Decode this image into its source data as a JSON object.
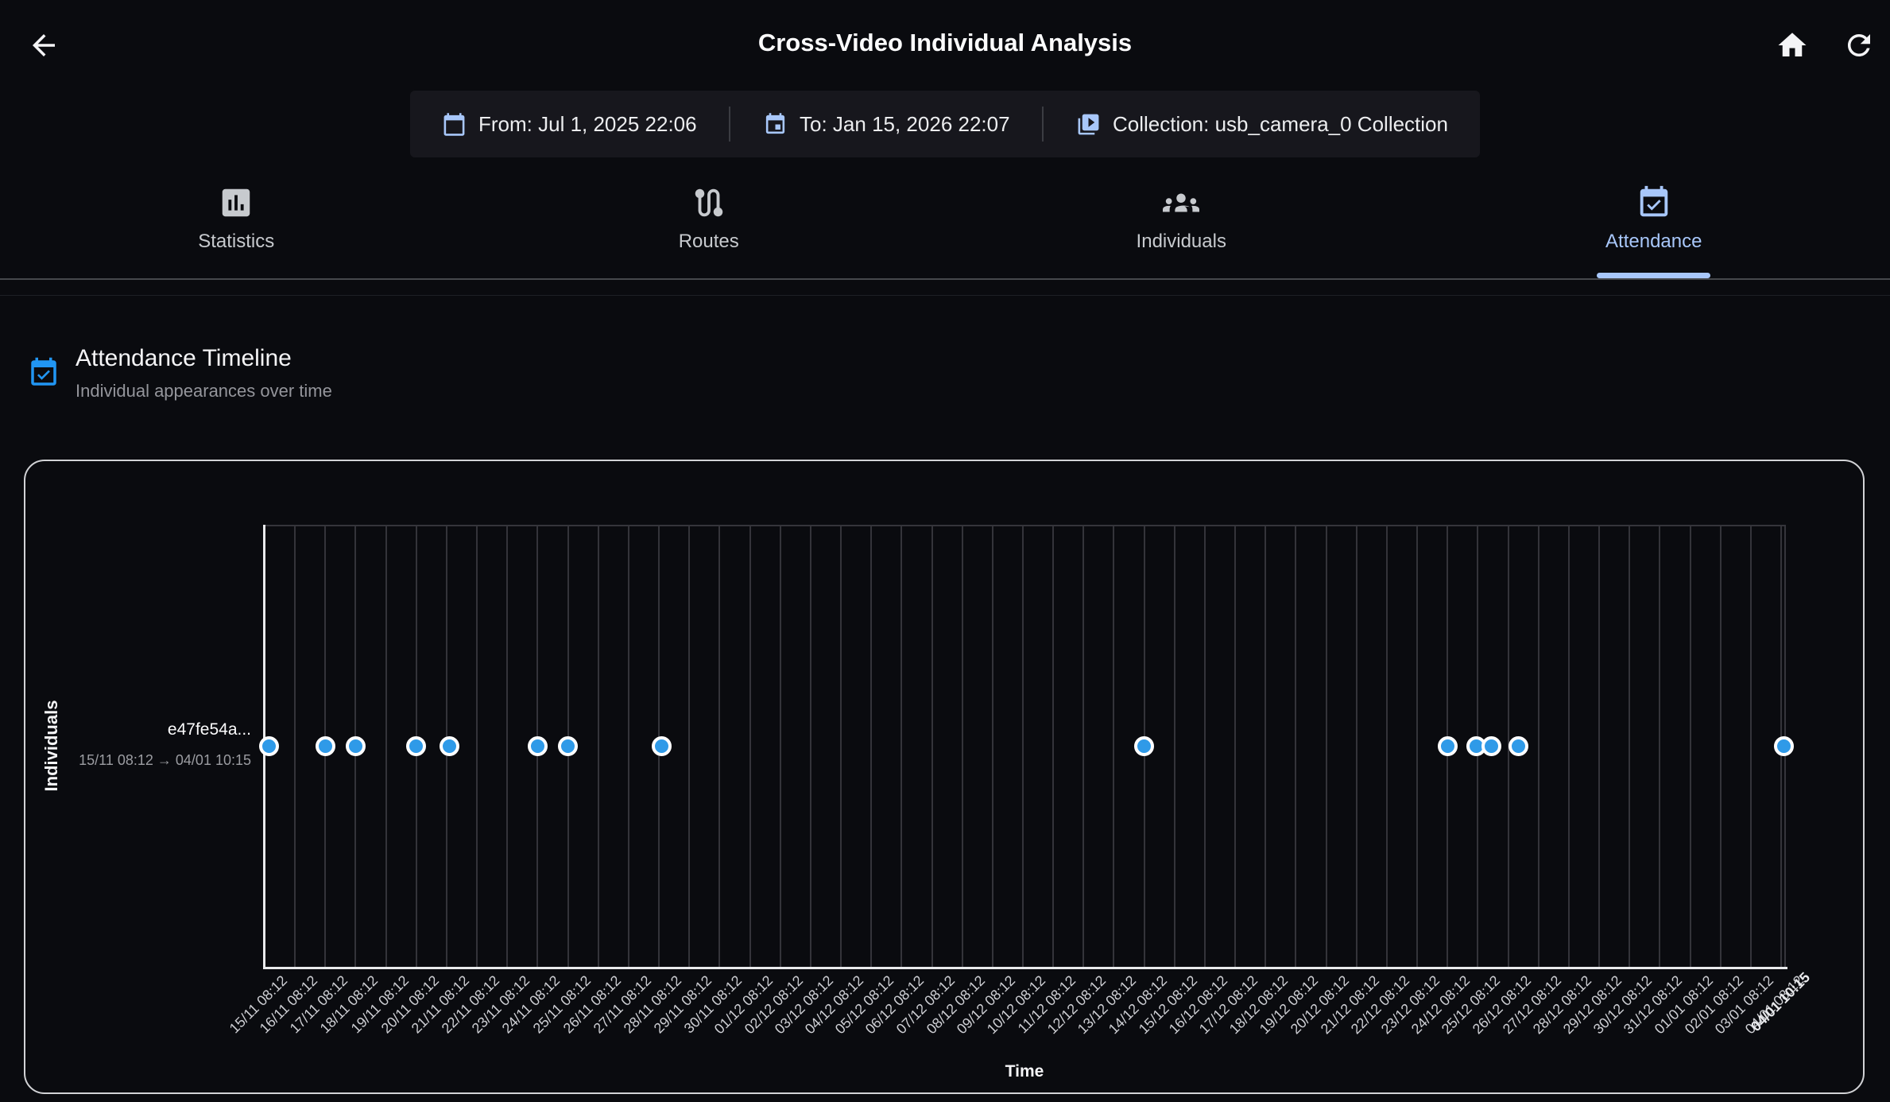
{
  "header": {
    "title": "Cross-Video Individual Analysis"
  },
  "filter_bar": {
    "from": {
      "icon": "calendar-icon",
      "label": "From: Jul 1, 2025 22:06"
    },
    "to": {
      "icon": "calendar-event-icon",
      "label": "To: Jan 15, 2026 22:07"
    },
    "collection": {
      "icon": "video-library-icon",
      "label": "Collection: usb_camera_0 Collection"
    }
  },
  "tabs": [
    {
      "label": "Statistics",
      "icon": "statistics-icon",
      "active": false
    },
    {
      "label": "Routes",
      "icon": "routes-icon",
      "active": false
    },
    {
      "label": "Individuals",
      "icon": "individuals-icon",
      "active": false
    },
    {
      "label": "Attendance",
      "icon": "attendance-icon",
      "active": true
    }
  ],
  "section": {
    "icon": "calendar-check-icon",
    "title": "Attendance Timeline",
    "subtitle": "Individual appearances over time"
  },
  "colors": {
    "accent_blue": "#a8c7fa",
    "section_blue": "#2196f3",
    "point_blue": "#2f9ae8",
    "background": "#0a0b0f"
  },
  "chart_data": {
    "type": "scatter",
    "title": "Attendance Timeline",
    "xlabel": "Time",
    "ylabel": "Individuals",
    "grid": true,
    "legend": false,
    "x_axis_start": "15/11 08:12",
    "x_axis_end": "04/01 10:15",
    "x_tick_labels": [
      "15/11 08:12",
      "16/11 08:12",
      "17/11 08:12",
      "18/11 08:12",
      "19/11 08:12",
      "20/11 08:12",
      "21/11 08:12",
      "22/11 08:12",
      "23/11 08:12",
      "24/11 08:12",
      "25/11 08:12",
      "26/11 08:12",
      "27/11 08:12",
      "28/11 08:12",
      "29/11 08:12",
      "30/11 08:12",
      "01/12 08:12",
      "02/12 08:12",
      "03/12 08:12",
      "04/12 08:12",
      "05/12 08:12",
      "06/12 08:12",
      "07/12 08:12",
      "08/12 08:12",
      "09/12 08:12",
      "10/12 08:12",
      "11/12 08:12",
      "12/12 08:12",
      "13/12 08:12",
      "14/12 08:12",
      "15/12 08:12",
      "16/12 08:12",
      "17/12 08:12",
      "18/12 08:12",
      "19/12 08:12",
      "20/12 08:12",
      "21/12 08:12",
      "22/12 08:12",
      "23/12 08:12",
      "24/12 08:12",
      "25/12 08:12",
      "26/12 08:12",
      "27/12 08:12",
      "28/12 08:12",
      "29/12 08:12",
      "30/12 08:12",
      "31/12 08:12",
      "01/01 08:12",
      "02/01 08:12",
      "03/01 08:12",
      "04/01 08:12"
    ],
    "x_end_overlay_label": "04/01 10:15",
    "rows": [
      {
        "id_label": "e47fe54a...",
        "range_label": "15/11 08:12 → 04/01 10:15",
        "appearance_day_offsets": [
          0.15,
          2.0,
          3.0,
          5.0,
          6.1,
          9.0,
          10.0,
          13.1,
          29.0,
          39.0,
          39.95,
          40.45,
          41.35,
          50.08
        ]
      }
    ]
  }
}
